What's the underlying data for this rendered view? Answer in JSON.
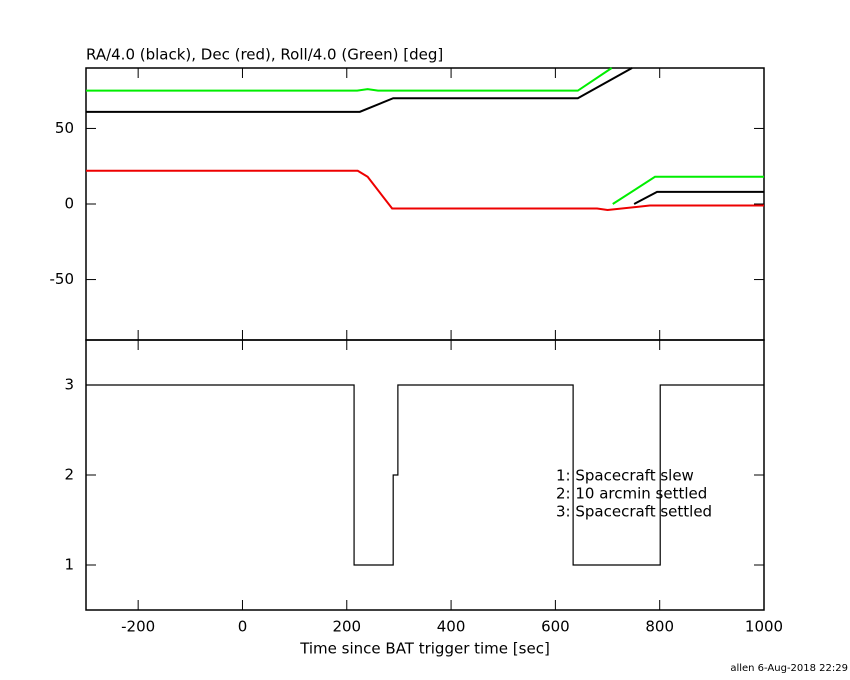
{
  "chart_data": [
    {
      "type": "line",
      "title": "RA/4.0 (black), Dec (red), Roll/4.0 (Green) [deg]",
      "xlim": [
        -300,
        1000
      ],
      "xticks": [
        -200,
        0,
        200,
        400,
        600,
        800,
        1000
      ],
      "ylim": [
        -90,
        90
      ],
      "yticks": [
        -50,
        0,
        50
      ],
      "series": [
        {
          "color": "#000000",
          "x": [
            -300,
            225,
            289,
            643,
            747,
            749,
            751,
            795,
            1000
          ],
          "values": [
            61,
            61,
            70,
            70,
            90,
            null,
            0,
            8,
            8
          ]
        },
        {
          "color": "#00ee00",
          "x": [
            -300,
            220,
            240,
            260,
            643,
            708,
            709,
            710,
            791,
            1000
          ],
          "values": [
            75,
            75,
            76,
            75,
            75,
            90,
            null,
            0,
            18,
            18
          ]
        },
        {
          "color": "#ee0000",
          "x": [
            -300,
            221,
            240,
            287,
            680,
            700,
            781,
            1000
          ],
          "values": [
            22,
            22,
            18,
            -3,
            -3,
            -4,
            -1,
            -1
          ]
        }
      ]
    },
    {
      "type": "step",
      "xlabel": "Time since BAT trigger time [sec]",
      "xlim": [
        -300,
        1000
      ],
      "xticks": [
        -200,
        0,
        200,
        400,
        600,
        800,
        1000
      ],
      "ylim": [
        0.5,
        3.5
      ],
      "yticks": [
        1,
        2,
        3
      ],
      "series": [
        {
          "color": "#000000",
          "x": [
            -300,
            214,
            289,
            298,
            634,
            801,
            1000
          ],
          "values": [
            3,
            1,
            2,
            3,
            1,
            3,
            3
          ]
        }
      ],
      "annotations": [
        "1: Spacecraft slew",
        "2: 10 arcmin settled",
        "3: Spacecraft settled"
      ]
    }
  ],
  "footer": "allen  6-Aug-2018 22:29"
}
